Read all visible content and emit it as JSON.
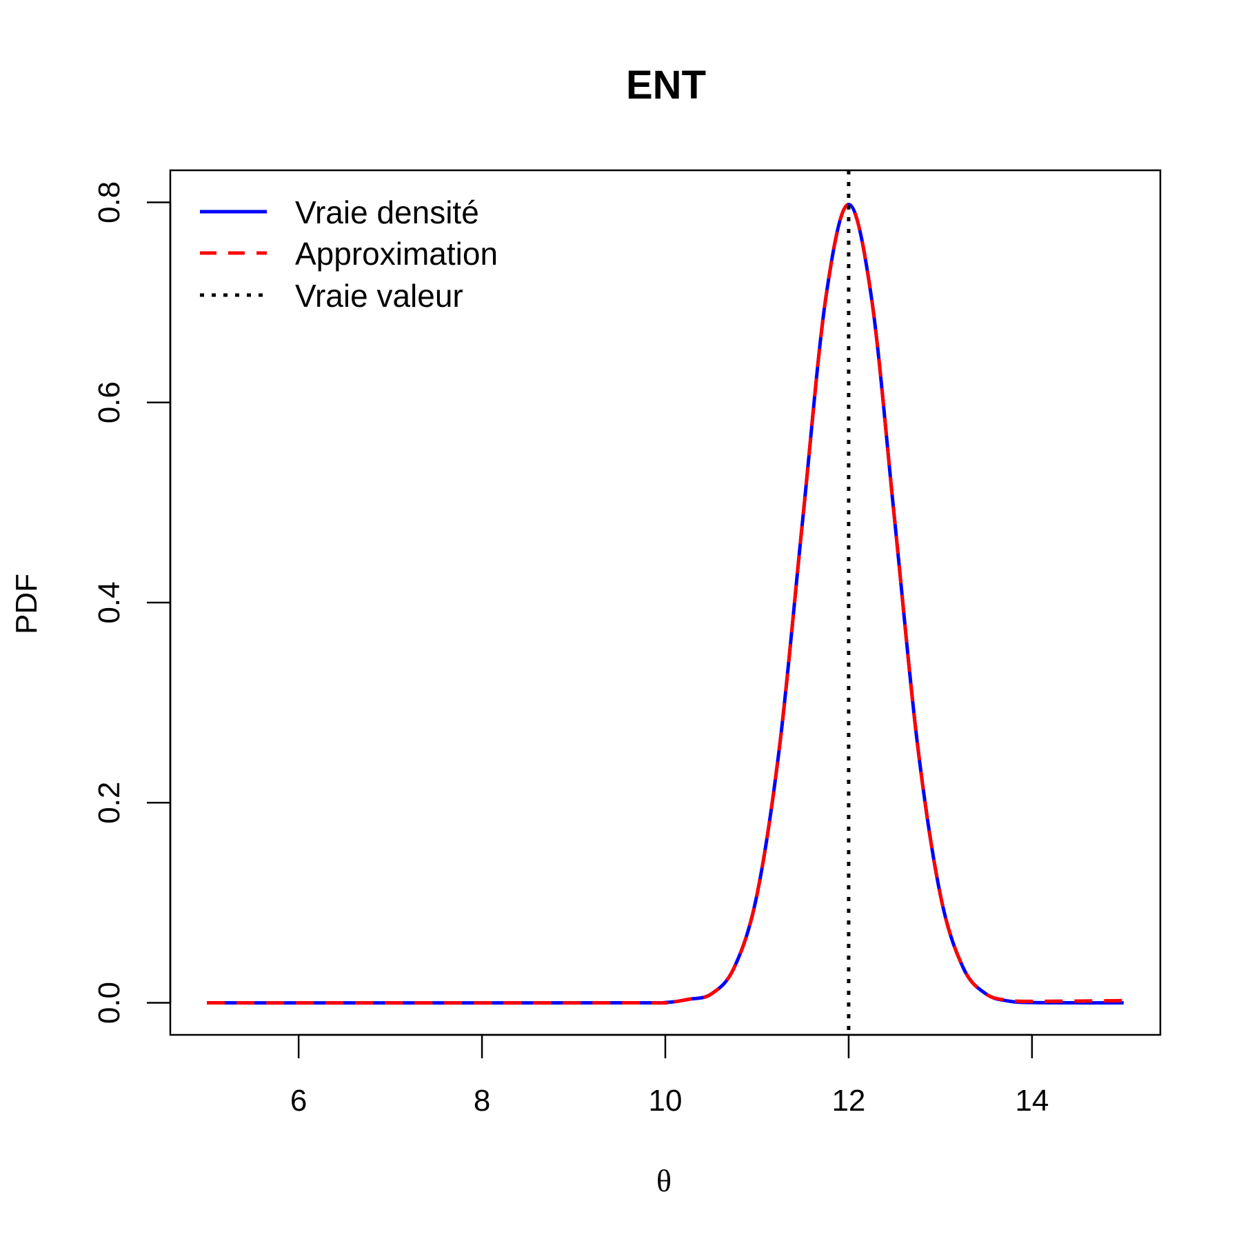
{
  "chart_data": {
    "type": "line",
    "title": "ENT",
    "xlabel": "θ",
    "ylabel": "PDF",
    "xlim": [
      4.6,
      15.4
    ],
    "ylim": [
      -0.032,
      0.832
    ],
    "x_ticks": [
      6,
      8,
      10,
      12,
      14
    ],
    "x_tick_labels": [
      "6",
      "8",
      "10",
      "12",
      "14"
    ],
    "y_ticks": [
      0.0,
      0.2,
      0.4,
      0.6,
      0.8
    ],
    "y_tick_labels": [
      "0.0",
      "0.2",
      "0.4",
      "0.6",
      "0.8"
    ],
    "grid": false,
    "legend_position": "top-left",
    "colors": {
      "true_density": "#0000ff",
      "approximation": "#ff0000",
      "true_value": "#000000",
      "axes": "#000000"
    },
    "series": [
      {
        "name": "Vraie densité",
        "style": "solid",
        "color": "#0000ff",
        "x": [
          5.0,
          9.5,
          10.0,
          10.25,
          10.5,
          10.75,
          11.0,
          11.25,
          11.5,
          11.75,
          12.0,
          12.25,
          12.5,
          12.75,
          13.0,
          13.25,
          13.5,
          13.75,
          14.0,
          14.5,
          15.0
        ],
        "values": [
          0.0,
          0.0,
          0.0003,
          0.0035,
          0.0088,
          0.035,
          0.108,
          0.259,
          0.484,
          0.704,
          0.7979,
          0.704,
          0.484,
          0.259,
          0.108,
          0.035,
          0.0088,
          0.0017,
          0.0003,
          0.0,
          0.0
        ]
      },
      {
        "name": "Approximation",
        "style": "dashed",
        "color": "#ff0000",
        "x": [
          5.0,
          9.5,
          10.0,
          10.25,
          10.5,
          10.75,
          11.0,
          11.25,
          11.5,
          11.75,
          12.0,
          12.25,
          12.5,
          12.75,
          13.0,
          13.25,
          13.5,
          13.75,
          14.0,
          14.5,
          15.0
        ],
        "values": [
          0.0,
          0.0,
          0.0003,
          0.0035,
          0.0088,
          0.035,
          0.108,
          0.259,
          0.484,
          0.704,
          0.7979,
          0.704,
          0.484,
          0.259,
          0.108,
          0.035,
          0.0088,
          0.0025,
          0.0015,
          0.0018,
          0.0022
        ]
      }
    ],
    "vline": {
      "name": "Vraie valeur",
      "x": 12,
      "style": "dotted",
      "color": "#000000"
    }
  }
}
